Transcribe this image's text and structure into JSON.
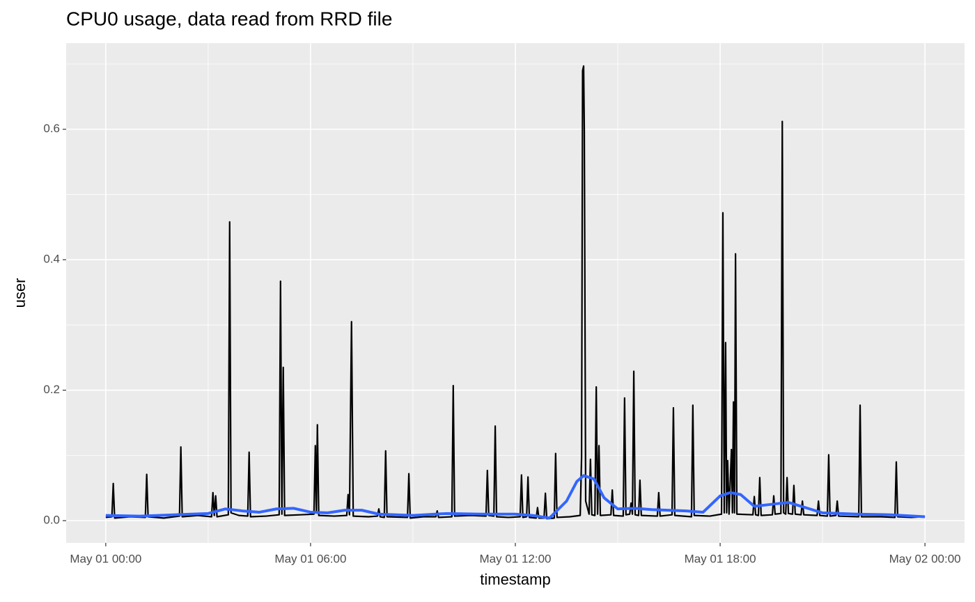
{
  "chart_data": {
    "type": "line",
    "title": "CPU0 usage, data read from RRD file",
    "x_label": "timestamp",
    "y_label": "user",
    "xlim": [
      -1.16,
      25.16
    ],
    "xticks": [
      {
        "value": 0,
        "label": "May 01 00:00"
      },
      {
        "value": 6,
        "label": "May 01 06:00"
      },
      {
        "value": 12,
        "label": "May 01 12:00"
      },
      {
        "value": 18,
        "label": "May 01 18:00"
      },
      {
        "value": 24,
        "label": "May 02 00:00"
      }
    ],
    "ylim": [
      -0.034,
      0.732
    ],
    "yticks": [
      {
        "value": 0,
        "label": "0.0"
      },
      0.2,
      0.4,
      0.6
    ],
    "grid": true,
    "series": [
      {
        "color": "#000000",
        "x": [
          0.0,
          0.18,
          0.22,
          0.26,
          0.7,
          1.16,
          1.2,
          1.24,
          1.7,
          2.16,
          2.2,
          2.24,
          2.7,
          3.1,
          3.14,
          3.18,
          3.22,
          3.26,
          3.59,
          3.63,
          3.67,
          3.9,
          4.16,
          4.2,
          4.24,
          4.7,
          5.08,
          5.12,
          5.16,
          5.2,
          5.24,
          5.7,
          6.1,
          6.14,
          6.17,
          6.2,
          6.24,
          6.7,
          7.06,
          7.1,
          7.14,
          7.2,
          7.25,
          7.7,
          7.96,
          8.0,
          8.04,
          8.16,
          8.2,
          8.24,
          8.84,
          8.88,
          8.92,
          9.3,
          9.67,
          9.71,
          9.75,
          10.14,
          10.18,
          10.22,
          10.7,
          11.14,
          11.18,
          11.22,
          11.37,
          11.41,
          11.45,
          11.8,
          12.14,
          12.18,
          12.22,
          12.33,
          12.37,
          12.41,
          12.61,
          12.65,
          12.69,
          12.84,
          12.88,
          12.92,
          13.14,
          13.18,
          13.22,
          13.6,
          13.9,
          13.94,
          13.97,
          14.0,
          14.02,
          14.06,
          14.16,
          14.2,
          14.24,
          14.33,
          14.37,
          14.41,
          14.45,
          14.49,
          14.8,
          14.84,
          14.88,
          15.16,
          15.2,
          15.24,
          15.35,
          15.39,
          15.43,
          15.47,
          15.51,
          15.61,
          15.65,
          15.69,
          16.16,
          16.2,
          16.24,
          16.59,
          16.63,
          16.67,
          17.16,
          17.2,
          17.24,
          17.7,
          18.04,
          18.08,
          18.12,
          18.16,
          18.19,
          18.22,
          18.26,
          18.33,
          18.36,
          18.39,
          18.42,
          18.45,
          18.49,
          18.96,
          19.0,
          19.04,
          19.12,
          19.16,
          19.2,
          19.53,
          19.57,
          19.61,
          19.78,
          19.82,
          19.86,
          19.92,
          19.96,
          20.0,
          20.12,
          20.16,
          20.2,
          20.37,
          20.41,
          20.45,
          20.84,
          20.88,
          20.92,
          21.14,
          21.18,
          21.22,
          21.39,
          21.43,
          21.47,
          22.06,
          22.1,
          22.14,
          22.7,
          23.12,
          23.16,
          23.2,
          23.6,
          23.94
        ],
        "values": [
          0.005,
          0.006,
          0.057,
          0.004,
          0.006,
          0.005,
          0.071,
          0.006,
          0.004,
          0.007,
          0.113,
          0.006,
          0.008,
          0.006,
          0.043,
          0.008,
          0.038,
          0.006,
          0.009,
          0.458,
          0.012,
          0.008,
          0.007,
          0.105,
          0.006,
          0.007,
          0.009,
          0.367,
          0.01,
          0.235,
          0.008,
          0.009,
          0.01,
          0.115,
          0.012,
          0.147,
          0.008,
          0.007,
          0.008,
          0.04,
          0.009,
          0.305,
          0.007,
          0.006,
          0.007,
          0.018,
          0.006,
          0.005,
          0.107,
          0.006,
          0.005,
          0.072,
          0.004,
          0.006,
          0.006,
          0.015,
          0.005,
          0.006,
          0.207,
          0.007,
          0.008,
          0.007,
          0.077,
          0.008,
          0.007,
          0.145,
          0.006,
          0.005,
          0.006,
          0.07,
          0.005,
          0.006,
          0.067,
          0.005,
          0.004,
          0.02,
          0.004,
          0.004,
          0.042,
          0.003,
          0.004,
          0.103,
          0.005,
          0.006,
          0.008,
          0.097,
          0.69,
          0.697,
          0.6,
          0.03,
          0.01,
          0.094,
          0.009,
          0.008,
          0.205,
          0.01,
          0.115,
          0.008,
          0.009,
          0.047,
          0.008,
          0.007,
          0.188,
          0.009,
          0.01,
          0.027,
          0.01,
          0.229,
          0.009,
          0.008,
          0.062,
          0.008,
          0.007,
          0.043,
          0.007,
          0.009,
          0.173,
          0.008,
          0.006,
          0.177,
          0.008,
          0.007,
          0.01,
          0.472,
          0.012,
          0.273,
          0.012,
          0.092,
          0.01,
          0.109,
          0.012,
          0.182,
          0.012,
          0.409,
          0.01,
          0.009,
          0.037,
          0.009,
          0.008,
          0.066,
          0.008,
          0.009,
          0.038,
          0.01,
          0.011,
          0.612,
          0.012,
          0.01,
          0.066,
          0.011,
          0.01,
          0.054,
          0.01,
          0.009,
          0.03,
          0.009,
          0.008,
          0.03,
          0.008,
          0.007,
          0.101,
          0.007,
          0.008,
          0.03,
          0.007,
          0.006,
          0.177,
          0.006,
          0.006,
          0.005,
          0.09,
          0.006,
          0.005,
          0.006
        ]
      },
      {
        "color": "#3366FF",
        "x": [
          0,
          1,
          2,
          3,
          3.5,
          4,
          4.5,
          5,
          5.5,
          6,
          6.5,
          7,
          7.5,
          8,
          9,
          10,
          11,
          12,
          12.5,
          13,
          13.5,
          13.8,
          14.0,
          14.3,
          14.6,
          15,
          15.5,
          16,
          17,
          17.5,
          18,
          18.3,
          18.6,
          19,
          19.5,
          20,
          20.5,
          21,
          22,
          23,
          24
        ],
        "values": [
          0.008,
          0.007,
          0.009,
          0.011,
          0.018,
          0.015,
          0.013,
          0.018,
          0.019,
          0.013,
          0.012,
          0.016,
          0.016,
          0.01,
          0.008,
          0.011,
          0.01,
          0.01,
          0.008,
          0.004,
          0.03,
          0.06,
          0.069,
          0.064,
          0.035,
          0.018,
          0.019,
          0.017,
          0.015,
          0.013,
          0.038,
          0.043,
          0.04,
          0.022,
          0.025,
          0.028,
          0.02,
          0.012,
          0.01,
          0.009,
          0.006
        ]
      }
    ]
  }
}
